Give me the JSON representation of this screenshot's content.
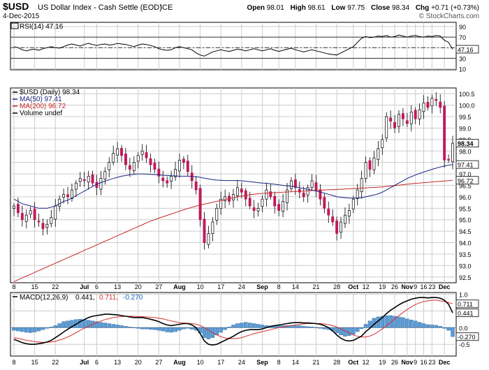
{
  "header": {
    "symbol": "$USD",
    "name": "US Dollar Index - Cash Settle (EOD)",
    "exchange": "ICE",
    "date": "4-Dec-2015",
    "brand": "© StockCharts.com",
    "quote": {
      "open_label": "Open",
      "open": "98.01",
      "high_label": "High",
      "high": "98.61",
      "low_label": "Low",
      "low": "97.75",
      "close_label": "Close",
      "close": "98.34",
      "chg_label": "Chg",
      "chg": "+0.71 (+0.73%)"
    }
  },
  "chart_data": [
    {
      "type": "line",
      "panel": "rsi",
      "legend": [
        {
          "text": "RSI(14) 47.16",
          "color": "#000000"
        }
      ],
      "yticks": [
        90,
        70,
        50,
        30,
        10
      ],
      "ylim": [
        8,
        98
      ],
      "reference_lines": [
        70,
        50,
        30
      ],
      "last_label": "47.16",
      "series": [
        {
          "name": "RSI(14)",
          "color": "#000000",
          "values": [
            52,
            50,
            46,
            44,
            46,
            47,
            45,
            48,
            50,
            52,
            50,
            49,
            52,
            55,
            57,
            55,
            53,
            56,
            58,
            56,
            54,
            56,
            57,
            55,
            56,
            58,
            57,
            56,
            54,
            52,
            55,
            57,
            56,
            54,
            52,
            48,
            46,
            45,
            46,
            50,
            52,
            50,
            48,
            46,
            40,
            36,
            34,
            38,
            42,
            44,
            46,
            44,
            43,
            45,
            47,
            46,
            44,
            46,
            48,
            46,
            44,
            46,
            48,
            45,
            43,
            45,
            47,
            49,
            46,
            44,
            42,
            44,
            46,
            44,
            42,
            40,
            38,
            37,
            36,
            40,
            44,
            48,
            52,
            60,
            68,
            71,
            69,
            70,
            72,
            71,
            73,
            70,
            71,
            74,
            72,
            70,
            72,
            73,
            71,
            70,
            72,
            71,
            73,
            72,
            64,
            60,
            47
          ]
        }
      ]
    },
    {
      "type": "candlestick",
      "panel": "price",
      "legend": [
        {
          "text": "$USD (Daily) 98.34",
          "color": "#000000"
        },
        {
          "text": "MA(50) 97.41",
          "color": "#1a237e"
        },
        {
          "text": "MA(200) 96.72",
          "color": "#c62828"
        },
        {
          "text": "Volume undef",
          "color": "#000000"
        }
      ],
      "yticks": [
        "100.5",
        "100.0",
        "99.5",
        "99.0",
        "98.5",
        "98.0",
        "97.5",
        "97.0",
        "96.5",
        "96.0",
        "95.5",
        "95.0",
        "94.5",
        "94.0",
        "93.5",
        "93.0",
        "92.5"
      ],
      "ylim": [
        92.25,
        100.75
      ],
      "price_labels": [
        {
          "text": "98.34",
          "value": 98.34,
          "bg": "#ffffff",
          "fg": "#000000",
          "bold": true
        },
        {
          "text": "97.41",
          "value": 97.41,
          "bg": "#ffffff",
          "fg": "#000000",
          "bold": false
        },
        {
          "text": "96.72",
          "value": 96.72,
          "bg": "#ffffff",
          "fg": "#000000",
          "bold": false
        }
      ],
      "up_color": "#ffffff",
      "down_color": "#c2185b",
      "close": [
        95.6,
        95.3,
        95.0,
        95.2,
        95.4,
        95.0,
        94.9,
        94.6,
        94.8,
        95.1,
        95.6,
        95.9,
        96.1,
        96.0,
        96.3,
        96.6,
        96.8,
        96.7,
        96.9,
        96.6,
        96.4,
        96.8,
        97.1,
        97.5,
        97.9,
        98.1,
        97.8,
        97.4,
        97.2,
        97.5,
        97.8,
        98.0,
        97.7,
        97.4,
        97.2,
        96.9,
        96.7,
        96.6,
        96.9,
        97.2,
        97.6,
        97.5,
        97.1,
        96.7,
        96.3,
        95.0,
        94.0,
        94.4,
        94.9,
        95.5,
        95.9,
        96.0,
        95.8,
        96.1,
        96.4,
        96.2,
        95.9,
        95.6,
        95.4,
        95.5,
        95.9,
        96.3,
        96.0,
        95.6,
        95.4,
        95.8,
        96.3,
        96.7,
        96.4,
        96.2,
        96.0,
        96.4,
        96.7,
        96.3,
        95.9,
        95.5,
        95.2,
        94.9,
        94.4,
        94.9,
        95.2,
        95.4,
        95.9,
        96.3,
        96.8,
        97.5,
        97.2,
        97.7,
        98.1,
        98.5,
        99.5,
        99.3,
        99.0,
        99.6,
        99.4,
        99.2,
        99.7,
        99.4,
        99.8,
        100.1,
        99.9,
        100.3,
        100.2,
        99.9,
        97.6,
        97.6,
        98.34
      ],
      "ma50": [
        95.9,
        95.8,
        95.7,
        95.65,
        95.6,
        95.55,
        95.5,
        95.5,
        95.5,
        95.55,
        95.6,
        95.7,
        95.8,
        95.85,
        95.95,
        96.05,
        96.15,
        96.25,
        96.35,
        96.45,
        96.55,
        96.62,
        96.68,
        96.75,
        96.8,
        96.85,
        96.9,
        96.93,
        96.96,
        96.98,
        97.0,
        97.0,
        96.99,
        96.98,
        96.97,
        96.96,
        96.94,
        96.93,
        96.92,
        96.91,
        96.9,
        96.9,
        96.9,
        96.89,
        96.88,
        96.85,
        96.81,
        96.78,
        96.75,
        96.73,
        96.72,
        96.71,
        96.71,
        96.71,
        96.71,
        96.7,
        96.68,
        96.66,
        96.64,
        96.62,
        96.6,
        96.59,
        96.57,
        96.55,
        96.52,
        96.5,
        96.48,
        96.46,
        96.43,
        96.4,
        96.36,
        96.33,
        96.29,
        96.25,
        96.21,
        96.16,
        96.11,
        96.06,
        96.0,
        95.98,
        95.96,
        95.95,
        95.94,
        95.95,
        95.96,
        96.0,
        96.04,
        96.08,
        96.13,
        96.2,
        96.3,
        96.4,
        96.5,
        96.6,
        96.7,
        96.8,
        96.88,
        96.95,
        97.02,
        97.08,
        97.14,
        97.2,
        97.25,
        97.3,
        97.34,
        97.38,
        97.41
      ],
      "ma200": [
        92.3,
        92.38,
        92.46,
        92.54,
        92.62,
        92.7,
        92.78,
        92.86,
        92.94,
        93.02,
        93.1,
        93.18,
        93.26,
        93.34,
        93.42,
        93.5,
        93.58,
        93.66,
        93.74,
        93.82,
        93.9,
        93.98,
        94.06,
        94.14,
        94.22,
        94.3,
        94.38,
        94.46,
        94.54,
        94.62,
        94.7,
        94.78,
        94.86,
        94.94,
        95.0,
        95.07,
        95.13,
        95.19,
        95.25,
        95.31,
        95.37,
        95.43,
        95.49,
        95.54,
        95.59,
        95.64,
        95.68,
        95.72,
        95.76,
        95.8,
        95.84,
        95.88,
        95.92,
        95.96,
        96.0,
        96.03,
        96.06,
        96.09,
        96.11,
        96.13,
        96.15,
        96.16,
        96.17,
        96.18,
        96.19,
        96.2,
        96.21,
        96.22,
        96.23,
        96.24,
        96.25,
        96.26,
        96.27,
        96.28,
        96.29,
        96.3,
        96.31,
        96.31,
        96.32,
        96.33,
        96.34,
        96.35,
        96.36,
        96.37,
        96.38,
        96.39,
        96.4,
        96.41,
        96.42,
        96.43,
        96.45,
        96.47,
        96.49,
        96.51,
        96.53,
        96.55,
        96.57,
        96.59,
        96.6,
        96.62,
        96.63,
        96.65,
        96.66,
        96.68,
        96.69,
        96.7,
        96.72
      ]
    },
    {
      "type": "line",
      "panel": "macd",
      "legend": [
        {
          "text": "MACD(12,26,9)",
          "color": "#000000"
        },
        {
          "text": "0.441,",
          "color": "#000000"
        },
        {
          "text": "0.711,",
          "color": "#d32f2f"
        },
        {
          "text": "-0.270",
          "color": "#1565c0"
        }
      ],
      "yticks": [
        "1.0",
        "0.5",
        "0.0",
        "-0.5"
      ],
      "ylim": [
        -0.85,
        1.05
      ],
      "price_labels": [
        {
          "text": "0.711",
          "value": 0.711,
          "bg": "#ffffff",
          "fg": "#000000"
        },
        {
          "text": "0.441",
          "value": 0.441,
          "bg": "#ffffff",
          "fg": "#000000"
        },
        {
          "text": "-0.270",
          "value": -0.27,
          "bg": "#ffffff",
          "fg": "#000000"
        }
      ],
      "series": [
        {
          "name": "MACD",
          "color": "#000000",
          "values": [
            -0.35,
            -0.4,
            -0.45,
            -0.48,
            -0.5,
            -0.5,
            -0.48,
            -0.46,
            -0.43,
            -0.38,
            -0.3,
            -0.22,
            -0.13,
            -0.05,
            0.03,
            0.1,
            0.18,
            0.24,
            0.3,
            0.34,
            0.36,
            0.38,
            0.4,
            0.4,
            0.39,
            0.38,
            0.36,
            0.34,
            0.32,
            0.3,
            0.3,
            0.3,
            0.28,
            0.25,
            0.22,
            0.18,
            0.12,
            0.08,
            0.06,
            0.08,
            0.1,
            0.12,
            0.12,
            0.08,
            0.0,
            -0.18,
            -0.4,
            -0.5,
            -0.52,
            -0.5,
            -0.44,
            -0.38,
            -0.32,
            -0.26,
            -0.18,
            -0.12,
            -0.08,
            -0.06,
            -0.06,
            -0.06,
            -0.04,
            0.0,
            0.04,
            0.06,
            0.08,
            0.1,
            0.12,
            0.14,
            0.15,
            0.15,
            0.14,
            0.14,
            0.13,
            0.12,
            0.1,
            0.06,
            0.0,
            -0.1,
            -0.22,
            -0.32,
            -0.38,
            -0.4,
            -0.38,
            -0.32,
            -0.25,
            -0.12,
            -0.02,
            0.1,
            0.2,
            0.3,
            0.42,
            0.52,
            0.6,
            0.68,
            0.75,
            0.8,
            0.85,
            0.88,
            0.9,
            0.9,
            0.89,
            0.9,
            0.9,
            0.88,
            0.82,
            0.7,
            0.441
          ]
        },
        {
          "name": "Signal",
          "color": "#d32f2f",
          "values": [
            -0.3,
            -0.32,
            -0.35,
            -0.38,
            -0.4,
            -0.42,
            -0.43,
            -0.44,
            -0.44,
            -0.43,
            -0.41,
            -0.37,
            -0.33,
            -0.28,
            -0.22,
            -0.15,
            -0.08,
            -0.02,
            0.04,
            0.1,
            0.15,
            0.2,
            0.24,
            0.27,
            0.3,
            0.32,
            0.33,
            0.34,
            0.34,
            0.34,
            0.33,
            0.33,
            0.32,
            0.31,
            0.3,
            0.28,
            0.26,
            0.23,
            0.2,
            0.17,
            0.15,
            0.14,
            0.13,
            0.12,
            0.1,
            0.06,
            0.0,
            -0.08,
            -0.15,
            -0.22,
            -0.27,
            -0.31,
            -0.33,
            -0.33,
            -0.32,
            -0.3,
            -0.26,
            -0.22,
            -0.18,
            -0.15,
            -0.12,
            -0.09,
            -0.06,
            -0.03,
            0.0,
            0.02,
            0.04,
            0.06,
            0.08,
            0.1,
            0.11,
            0.12,
            0.12,
            0.12,
            0.12,
            0.11,
            0.09,
            0.06,
            0.02,
            -0.04,
            -0.1,
            -0.16,
            -0.22,
            -0.26,
            -0.28,
            -0.28,
            -0.25,
            -0.2,
            -0.12,
            -0.04,
            0.06,
            0.16,
            0.26,
            0.36,
            0.45,
            0.54,
            0.62,
            0.69,
            0.74,
            0.78,
            0.8,
            0.82,
            0.82,
            0.8,
            0.78,
            0.75,
            0.711
          ]
        }
      ],
      "histogram": {
        "name": "Histogram",
        "color": "#5b9bd5",
        "stroke": "#1f5c99",
        "values": [
          -0.08,
          -0.1,
          -0.12,
          -0.14,
          -0.15,
          -0.13,
          -0.1,
          -0.06,
          -0.02,
          0.02,
          0.06,
          0.12,
          0.18,
          0.2,
          0.22,
          0.24,
          0.25,
          0.24,
          0.22,
          0.2,
          0.18,
          0.16,
          0.14,
          0.12,
          0.1,
          0.08,
          0.06,
          0.04,
          0.02,
          0.0,
          -0.02,
          -0.04,
          -0.04,
          -0.05,
          -0.06,
          -0.08,
          -0.1,
          -0.13,
          -0.14,
          -0.12,
          -0.08,
          -0.04,
          -0.02,
          -0.05,
          -0.08,
          -0.16,
          -0.3,
          -0.34,
          -0.3,
          -0.22,
          -0.14,
          -0.06,
          0.02,
          0.08,
          0.12,
          0.14,
          0.16,
          0.14,
          0.12,
          0.1,
          0.08,
          0.06,
          0.05,
          0.06,
          0.06,
          0.06,
          0.06,
          0.06,
          0.06,
          0.06,
          0.04,
          0.03,
          0.02,
          0.0,
          -0.02,
          -0.04,
          -0.06,
          -0.1,
          -0.16,
          -0.22,
          -0.26,
          -0.24,
          -0.2,
          -0.12,
          -0.03,
          0.1,
          0.2,
          0.28,
          0.32,
          0.34,
          0.36,
          0.36,
          0.34,
          0.32,
          0.3,
          0.26,
          0.23,
          0.2,
          0.16,
          0.12,
          0.09,
          0.08,
          0.07,
          0.04,
          -0.02,
          -0.08,
          -0.27
        ]
      }
    }
  ],
  "x_axis": {
    "ticks": [
      {
        "label": "8",
        "i": 0
      },
      {
        "label": "15",
        "i": 5
      },
      {
        "label": "22",
        "i": 10
      },
      {
        "label": "Jul",
        "i": 17,
        "bold": true
      },
      {
        "label": "6",
        "i": 20
      },
      {
        "label": "13",
        "i": 25
      },
      {
        "label": "20",
        "i": 30
      },
      {
        "label": "27",
        "i": 35
      },
      {
        "label": "Aug",
        "i": 40,
        "bold": true
      },
      {
        "label": "10",
        "i": 45
      },
      {
        "label": "17",
        "i": 50
      },
      {
        "label": "24",
        "i": 55
      },
      {
        "label": "Sep",
        "i": 60,
        "bold": true
      },
      {
        "label": "8",
        "i": 64
      },
      {
        "label": "14",
        "i": 68
      },
      {
        "label": "21",
        "i": 73
      },
      {
        "label": "28",
        "i": 78
      },
      {
        "label": "Oct",
        "i": 82,
        "bold": true
      },
      {
        "label": "12",
        "i": 85
      },
      {
        "label": "19",
        "i": 89
      },
      {
        "label": "26",
        "i": 92
      },
      {
        "label": "Nov",
        "i": 95,
        "bold": true
      },
      {
        "label": "9",
        "i": 97
      },
      {
        "label": "16",
        "i": 99
      },
      {
        "label": "23",
        "i": 101
      },
      {
        "label": "Dec",
        "i": 104,
        "bold": true
      }
    ]
  }
}
